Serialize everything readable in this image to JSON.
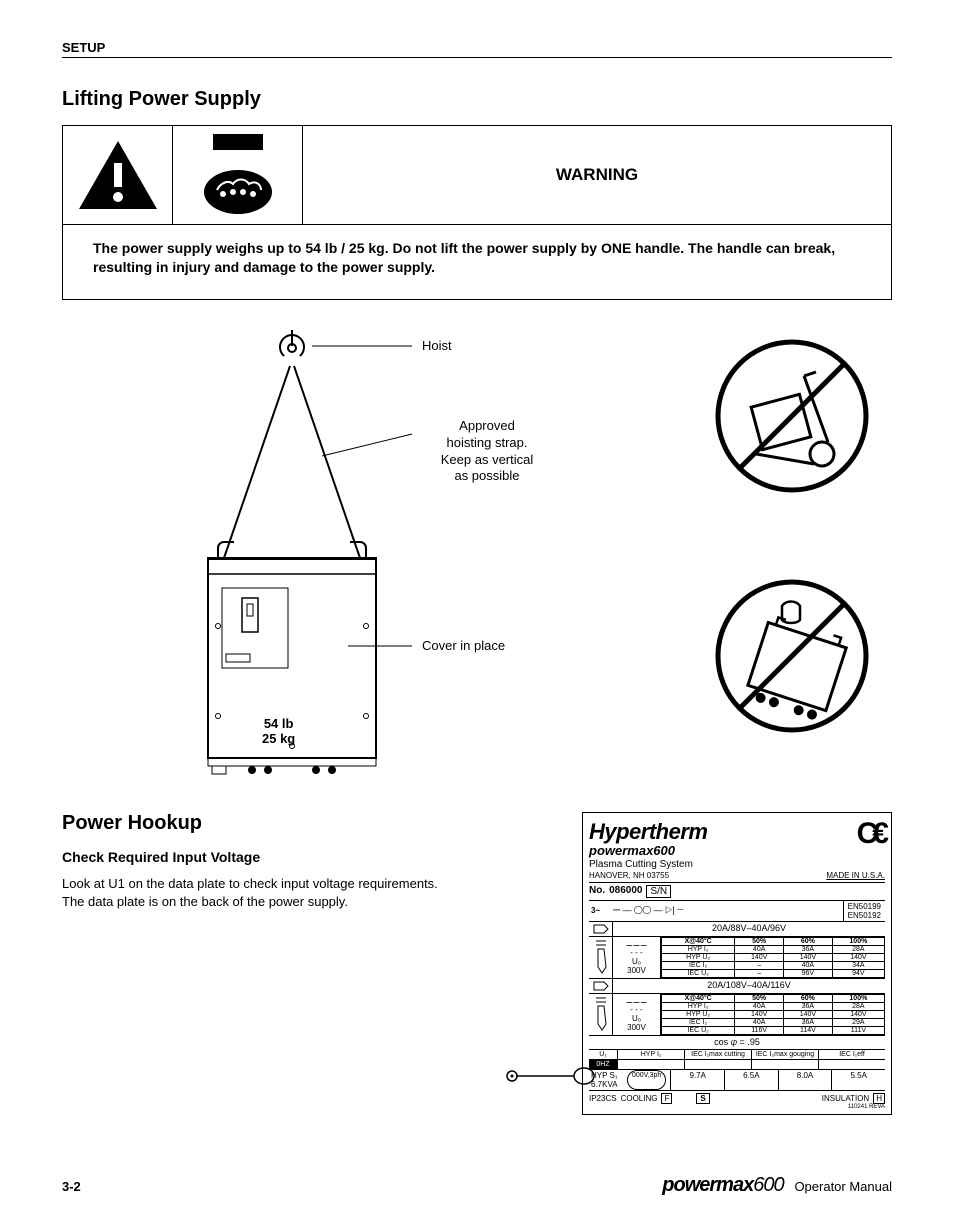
{
  "header": {
    "section": "SETUP"
  },
  "sec1": {
    "title": "Lifting Power Supply",
    "warning_label": "WARNING",
    "warning_text": "The power supply weighs up to 54 lb / 25 kg. Do not lift the power supply by ONE handle. The handle can break, resulting in injury and damage to the power supply.",
    "labels": {
      "hoist": "Hoist",
      "strap_l1": "Approved",
      "strap_l2": "hoisting strap.",
      "strap_l3": "Keep as vertical",
      "strap_l4": "as possible",
      "cover": "Cover in place",
      "weight_l1": "54 lb",
      "weight_l2": "25 kg"
    }
  },
  "sec2": {
    "title": "Power Hookup",
    "sub": "Check Required Input Voltage",
    "body_l1": "Look at U1 on the data plate to check input voltage requirements.",
    "body_l2": "The data plate is on the back of the power supply."
  },
  "plate": {
    "brand": "Hypertherm",
    "model": "powermax600",
    "system": "Plasma Cutting System",
    "addr": "HANOVER, NH 03755",
    "made": "MADE IN U.S.A.",
    "no_label": "No.",
    "no_val": "086000",
    "sn_label": "S/N",
    "phase": "3~",
    "en1": "EN50199",
    "en2": "EN50192",
    "header1": "20A/88V–40A/96V",
    "header2": "20A/108V–40A/116V",
    "subhead": [
      "X@40°C",
      "50%",
      "60%",
      "100%"
    ],
    "u0_l1": "U₀",
    "u0_l2": "300V",
    "rows1": [
      [
        "HYP I₂",
        "40A",
        "36A",
        "28A"
      ],
      [
        "HYP U₂",
        "140V",
        "140V",
        "140V"
      ],
      [
        "IEC I₂",
        "–",
        "40A",
        "34A"
      ],
      [
        "IEC U₂",
        "–",
        "96V",
        "94V"
      ]
    ],
    "rows2": [
      [
        "HYP I₂",
        "40A",
        "36A",
        "28A"
      ],
      [
        "HYP U₂",
        "140V",
        "140V",
        "140V"
      ],
      [
        "IEC I₂",
        "40A",
        "36A",
        "29A"
      ],
      [
        "IEC U₂",
        "116V",
        "114V",
        "111V"
      ]
    ],
    "cos": "cos 𝜑 = .95",
    "u1": "U₁",
    "hyp_i1": "HYP I₁",
    "iec_cut": "IEC I₁max cutting",
    "iec_gou": "IEC I₂max gouging",
    "iec_eff": "IEC I₁eff",
    "kva_l1": "HYP S₁",
    "kva_l2": "6.7KVA",
    "kva_oval": "000V,3ph",
    "bottom_vals": [
      "9.7A",
      "6.5A",
      "8.0A",
      "5.5A"
    ],
    "ip": "IP23CS",
    "cooling": "COOLING",
    "cooling_sym": "F",
    "s_sym": "S",
    "insul": "INSULATION",
    "insul_sym": "H",
    "rev": "110241 REVA"
  },
  "footer": {
    "page": "3-2",
    "brand": "powermax",
    "brand_num": "600",
    "suffix": "Operator Manual"
  },
  "colors": {
    "black": "#000000",
    "white": "#ffffff"
  }
}
